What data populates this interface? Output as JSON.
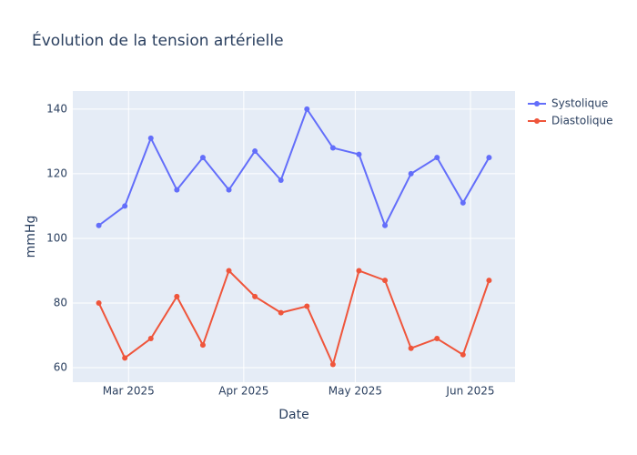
{
  "chart_data": {
    "type": "line",
    "title": "Évolution de la tension artérielle",
    "xlabel": "Date",
    "ylabel": "mmHg",
    "x": [
      "2025-02-21",
      "2025-02-28",
      "2025-03-07",
      "2025-03-14",
      "2025-03-21",
      "2025-03-28",
      "2025-04-04",
      "2025-04-11",
      "2025-04-18",
      "2025-04-25",
      "2025-05-02",
      "2025-05-09",
      "2025-05-16",
      "2025-05-23",
      "2025-05-30",
      "2025-06-06"
    ],
    "series": [
      {
        "name": "Systolique",
        "color": "#636efa",
        "values": [
          104,
          110,
          131,
          115,
          125,
          115,
          127,
          118,
          140,
          128,
          126,
          104,
          120,
          125,
          111,
          125
        ]
      },
      {
        "name": "Diastolique",
        "color": "#ef553b",
        "values": [
          80,
          63,
          69,
          82,
          67,
          90,
          82,
          77,
          79,
          61,
          90,
          87,
          66,
          69,
          64,
          87
        ]
      }
    ],
    "xlim": [
      "2025-02-14",
      "2025-06-13"
    ],
    "xticks": [
      {
        "value": "2025-03-01",
        "label": "Mar 2025"
      },
      {
        "value": "2025-04-01",
        "label": "Apr 2025"
      },
      {
        "value": "2025-05-01",
        "label": "May 2025"
      },
      {
        "value": "2025-06-01",
        "label": "Jun 2025"
      }
    ],
    "ylim": [
      55.5,
      145.6
    ],
    "yticks": [
      60,
      80,
      100,
      120,
      140
    ],
    "grid": true,
    "legend": "right"
  }
}
